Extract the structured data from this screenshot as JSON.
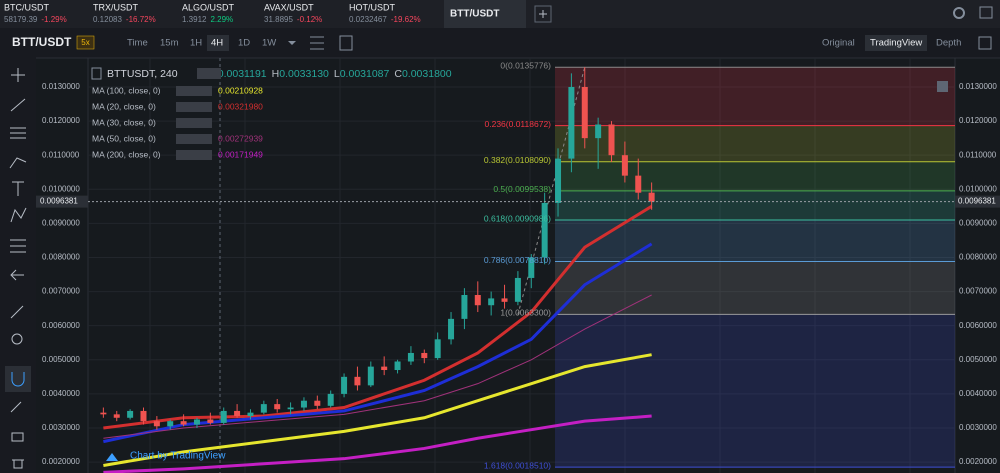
{
  "tickers": [
    {
      "pair": "BTC/USDT",
      "price": "58179.39",
      "change": "-1.29%",
      "color": "#f6465d"
    },
    {
      "pair": "TRX/USDT",
      "price": "0.12083",
      "change": "-16.72%",
      "color": "#f6465d"
    },
    {
      "pair": "ALGO/USDT",
      "price": "1.3912",
      "change": "2.29%",
      "color": "#0ecb81"
    },
    {
      "pair": "AVAX/USDT",
      "price": "31.8895",
      "change": "-0.12%",
      "color": "#f6465d"
    },
    {
      "pair": "HOT/USDT",
      "price": "0.0232467",
      "change": "-19.62%",
      "color": "#f6465d"
    }
  ],
  "active_tab": "BTT/USDT",
  "symbol": "BTT/USDT",
  "leverage": "5x",
  "intervals": [
    "Time",
    "15m",
    "1H",
    "4H",
    "1D",
    "1W"
  ],
  "active_interval": "4H",
  "views": [
    "Original",
    "TradingView",
    "Depth"
  ],
  "active_view": "TradingView",
  "footer": "Chart by TradingView",
  "chart_data": {
    "type": "candlestick",
    "title": "BTTUSDT, 240",
    "ohlc": [
      {
        "key": "O",
        "value": "0.0031191"
      },
      {
        "key": "H",
        "value": "0.0033130"
      },
      {
        "key": "L",
        "value": "0.0031087"
      },
      {
        "key": "C",
        "value": "0.0031800"
      }
    ],
    "ylim": [
      0.00168,
      0.01385
    ],
    "yticks": [
      {
        "value": 0.013,
        "label": "0.0130000"
      },
      {
        "value": 0.012,
        "label": "0.0120000"
      },
      {
        "value": 0.011,
        "label": "0.0110000"
      },
      {
        "value": 0.01,
        "label": "0.0100000"
      },
      {
        "value": 0.009,
        "label": "0.0090000"
      },
      {
        "value": 0.008,
        "label": "0.0080000"
      },
      {
        "value": 0.007,
        "label": "0.0070000"
      },
      {
        "value": 0.006,
        "label": "0.0060000"
      },
      {
        "value": 0.005,
        "label": "0.0050000"
      },
      {
        "value": 0.004,
        "label": "0.0040000"
      },
      {
        "value": 0.003,
        "label": "0.0030000"
      },
      {
        "value": 0.002,
        "label": "0.0020000"
      }
    ],
    "xlim": [
      -1,
      42
    ],
    "current_price": 0.0096381,
    "up_color": "#26a69a",
    "down_color": "#ef5350",
    "candles": {
      "open": [
        0.00345,
        0.0034,
        0.0033,
        0.0035,
        0.0032,
        0.00305,
        0.0032,
        0.0031,
        0.00325,
        0.00315,
        0.0035,
        0.00335,
        0.00345,
        0.0037,
        0.00355,
        0.0036,
        0.0038,
        0.00365,
        0.004,
        0.0045,
        0.00425,
        0.0048,
        0.0047,
        0.00495,
        0.0052,
        0.00505,
        0.0056,
        0.0062,
        0.0069,
        0.0066,
        0.0068,
        0.0067,
        0.0074,
        0.008,
        0.0096,
        0.0109,
        0.013,
        0.0115,
        0.0119,
        0.011,
        0.0104,
        0.0099
      ],
      "high": [
        0.0036,
        0.0035,
        0.00355,
        0.0036,
        0.00335,
        0.00325,
        0.0034,
        0.0033,
        0.00345,
        0.0036,
        0.0037,
        0.00355,
        0.0038,
        0.00385,
        0.00375,
        0.0039,
        0.00395,
        0.0041,
        0.0046,
        0.0048,
        0.00495,
        0.0051,
        0.005,
        0.0054,
        0.0053,
        0.0058,
        0.0064,
        0.0071,
        0.0073,
        0.007,
        0.0072,
        0.0076,
        0.0081,
        0.0099,
        0.0112,
        0.0134,
        0.01358,
        0.0121,
        0.012,
        0.0114,
        0.0109,
        0.0102
      ],
      "low": [
        0.0033,
        0.0032,
        0.00325,
        0.0031,
        0.00295,
        0.00295,
        0.00305,
        0.003,
        0.0031,
        0.0031,
        0.0033,
        0.00325,
        0.0034,
        0.00345,
        0.0034,
        0.0035,
        0.00355,
        0.0036,
        0.0039,
        0.0041,
        0.0042,
        0.00455,
        0.0046,
        0.00485,
        0.0049,
        0.005,
        0.00545,
        0.0059,
        0.0064,
        0.0063,
        0.0065,
        0.0066,
        0.0071,
        0.0078,
        0.0092,
        0.0105,
        0.0112,
        0.0106,
        0.0108,
        0.0102,
        0.0097,
        0.0094
      ],
      "close": [
        0.0034,
        0.0033,
        0.0035,
        0.0032,
        0.00305,
        0.0032,
        0.0031,
        0.00325,
        0.00315,
        0.0035,
        0.00335,
        0.00345,
        0.0037,
        0.00355,
        0.0036,
        0.0038,
        0.00365,
        0.004,
        0.0045,
        0.00425,
        0.0048,
        0.0047,
        0.00495,
        0.0052,
        0.00505,
        0.0056,
        0.0062,
        0.0069,
        0.0066,
        0.0068,
        0.0067,
        0.0074,
        0.008,
        0.0096,
        0.0109,
        0.013,
        0.0115,
        0.0119,
        0.011,
        0.0104,
        0.0099,
        0.00964
      ]
    },
    "series": [
      {
        "name": "MA (100, close, 0)",
        "value_label": "0.00210928",
        "color": "#e6e62e",
        "width": 3,
        "x": [
          0,
          6,
          12,
          18,
          24,
          28,
          32,
          36,
          41
        ],
        "values": [
          0.0019,
          0.0023,
          0.0026,
          0.0029,
          0.0033,
          0.0038,
          0.0043,
          0.0048,
          0.00515
        ]
      },
      {
        "name": "MA (20, close, 0)",
        "value_label": "0.00321980",
        "color": "#d32f2f",
        "width": 3,
        "x": [
          0,
          6,
          12,
          18,
          24,
          28,
          32,
          36,
          41
        ],
        "values": [
          0.003,
          0.0033,
          0.00335,
          0.0036,
          0.0044,
          0.0052,
          0.0064,
          0.0083,
          0.0095
        ]
      },
      {
        "name": "MA (30, close, 0)",
        "color": "#1e2ed6",
        "width": 3,
        "x": [
          0,
          6,
          12,
          18,
          24,
          28,
          32,
          36,
          41
        ],
        "values": [
          0.0026,
          0.0031,
          0.0033,
          0.0035,
          0.0041,
          0.0048,
          0.0056,
          0.0072,
          0.0084
        ]
      },
      {
        "name": "MA (50, close, 0)",
        "value_label": "0.00272939",
        "color": "#a0327a",
        "width": 1,
        "x": [
          0,
          6,
          12,
          18,
          24,
          28,
          32,
          36,
          41
        ],
        "values": [
          0.0027,
          0.003,
          0.0032,
          0.0034,
          0.0038,
          0.0043,
          0.005,
          0.0059,
          0.0069
        ]
      },
      {
        "name": "MA (200, close, 0)",
        "value_label": "0.00171949",
        "color": "#c41fc4",
        "width": 3,
        "x": [
          0,
          6,
          12,
          18,
          24,
          28,
          32,
          36,
          41
        ],
        "values": [
          0.0017,
          0.0018,
          0.00195,
          0.0021,
          0.0024,
          0.0027,
          0.00295,
          0.0032,
          0.00335
        ]
      }
    ],
    "fib": [
      {
        "label": "0(0.0135776)",
        "value": 0.0135776,
        "color": "#8a8a8a"
      },
      {
        "label": "0.236(0.0118672)",
        "value": 0.0118672,
        "color": "#f23645"
      },
      {
        "label": "0.382(0.0108090)",
        "value": 0.010809,
        "color": "#b8c634"
      },
      {
        "label": "0.5(0.0099538)",
        "value": 0.0099538,
        "color": "#4caf50"
      },
      {
        "label": "0.618(0.0090986)",
        "value": 0.0090986,
        "color": "#3cbfa0"
      },
      {
        "label": "0.786(0.0078810)",
        "value": 0.007881,
        "color": "#5a9bd5"
      },
      {
        "label": "1(0.0063300)",
        "value": 0.00633,
        "color": "#9a9a9a"
      },
      {
        "label": "1.618(0.0018510)",
        "value": 0.001851,
        "color": "#3f4fd6"
      }
    ]
  }
}
